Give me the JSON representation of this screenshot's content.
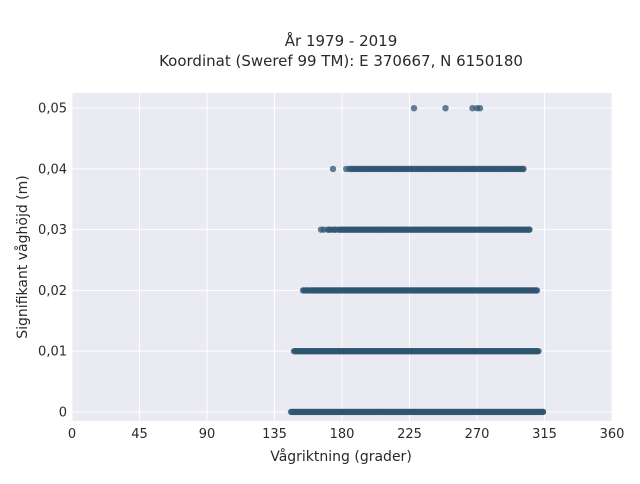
{
  "chart_data": {
    "type": "scatter",
    "title": "År 1979 - 2019",
    "subtitle": "Koordinat (Sweref 99 TM): E 370667, N 6150180",
    "xlabel": "Vågriktning (grader)",
    "ylabel": "Signifikant våghöjd (m)",
    "xlim": [
      0,
      360
    ],
    "ylim": [
      -0.0015,
      0.0525
    ],
    "x_ticks": [
      0,
      45,
      90,
      135,
      180,
      225,
      270,
      315,
      360
    ],
    "x_tick_labels": [
      "0",
      "45",
      "90",
      "135",
      "180",
      "225",
      "270",
      "315",
      "360"
    ],
    "y_ticks": [
      0,
      0.01,
      0.02,
      0.03,
      0.04,
      0.05
    ],
    "y_tick_labels": [
      "0",
      "0,01",
      "0,02",
      "0,03",
      "0,04",
      "0,05"
    ],
    "grid": true,
    "marker_color": "#2f5670",
    "plot_background": "#e9eaf2",
    "series": [
      {
        "values_y": 0,
        "x_range": [
          146,
          314
        ],
        "density": "very dense continuous band"
      },
      {
        "values_y": 0.01,
        "x_range": [
          148,
          311
        ],
        "density": "very dense continuous band"
      },
      {
        "values_y": 0.02,
        "x_range": [
          154,
          310
        ],
        "density": "dense band, scattered at left end"
      },
      {
        "values_y": 0.03,
        "x_range": [
          166,
          305
        ],
        "density": "dense band, sparser at left end"
      },
      {
        "values_y": 0.04,
        "x_range": [
          174,
          301
        ],
        "density": "moderate band with gaps left of 186"
      },
      {
        "values_y": 0.05,
        "x_points": [
          228,
          249,
          267,
          270,
          272
        ]
      }
    ]
  }
}
